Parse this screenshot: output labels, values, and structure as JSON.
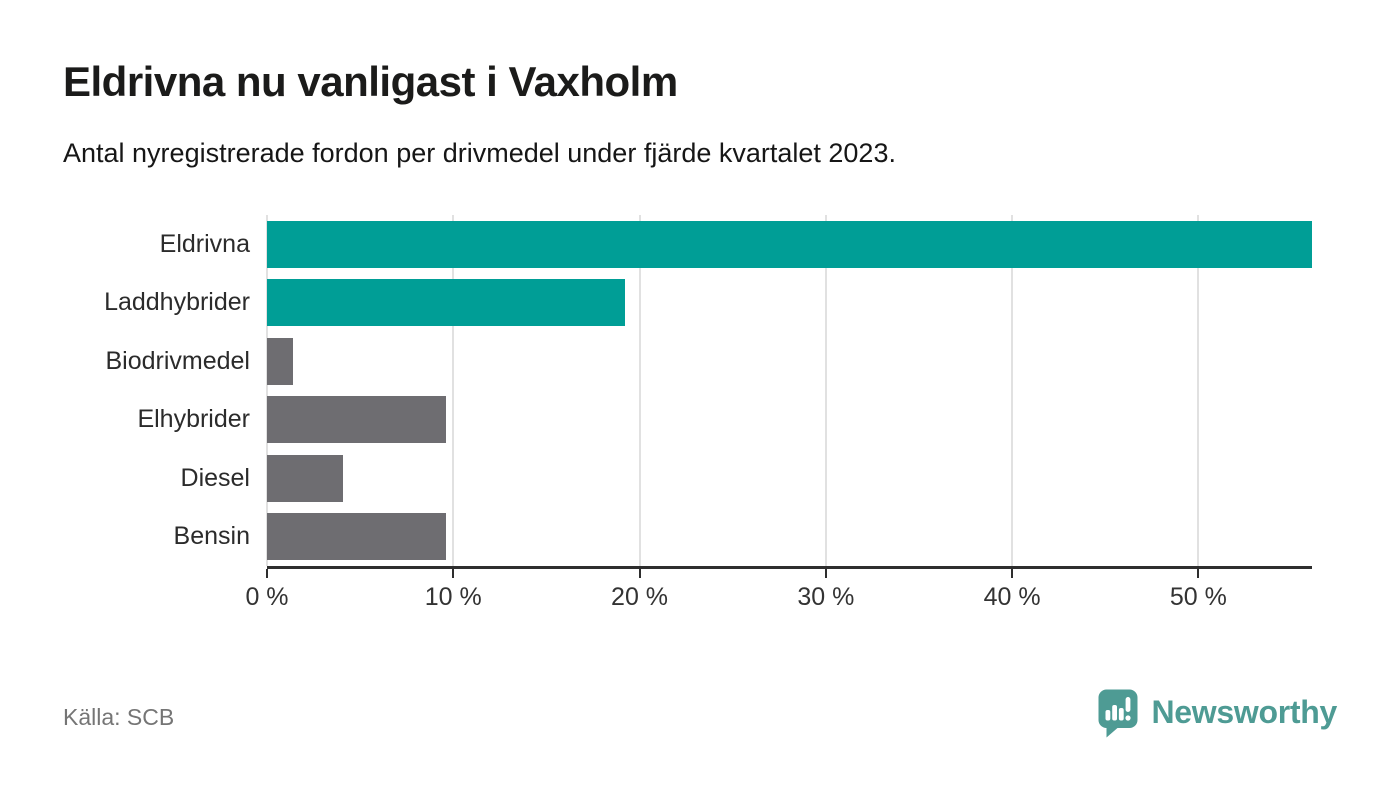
{
  "header": {
    "title": "Eldrivna nu vanligast i Vaxholm",
    "subtitle": "Antal nyregistrerade fordon per drivmedel under fjärde kvartalet 2023."
  },
  "chart_data": {
    "type": "bar",
    "orientation": "horizontal",
    "title": "Eldrivna nu vanligast i Vaxholm",
    "subtitle": "Antal nyregistrerade fordon per drivmedel under fjärde kvartalet 2023.",
    "categories": [
      "Eldrivna",
      "Laddhybrider",
      "Biodrivmedel",
      "Elhybrider",
      "Diesel",
      "Bensin"
    ],
    "values": [
      56.1,
      19.2,
      1.4,
      9.6,
      4.1,
      9.6
    ],
    "unit": "%",
    "xlim": [
      0,
      56.1
    ],
    "x_ticks": [
      0,
      10,
      20,
      30,
      40,
      50
    ],
    "x_tick_suffix": " %",
    "grid": "vertical",
    "legend": "none",
    "highlighted_categories": [
      "Eldrivna",
      "Laddhybrider"
    ],
    "bar_colors": [
      "#009e96",
      "#009e96",
      "#6e6d71",
      "#6e6d71",
      "#6e6d71",
      "#6e6d71"
    ],
    "colors": {
      "highlight": "#009e96",
      "default": "#6e6d71",
      "gridline": "#e1e1e1",
      "axis": "#2e2e2e"
    }
  },
  "footer": {
    "source": "Källa: SCB",
    "brand": "Newsworthy",
    "brand_color": "#4e9b94"
  }
}
